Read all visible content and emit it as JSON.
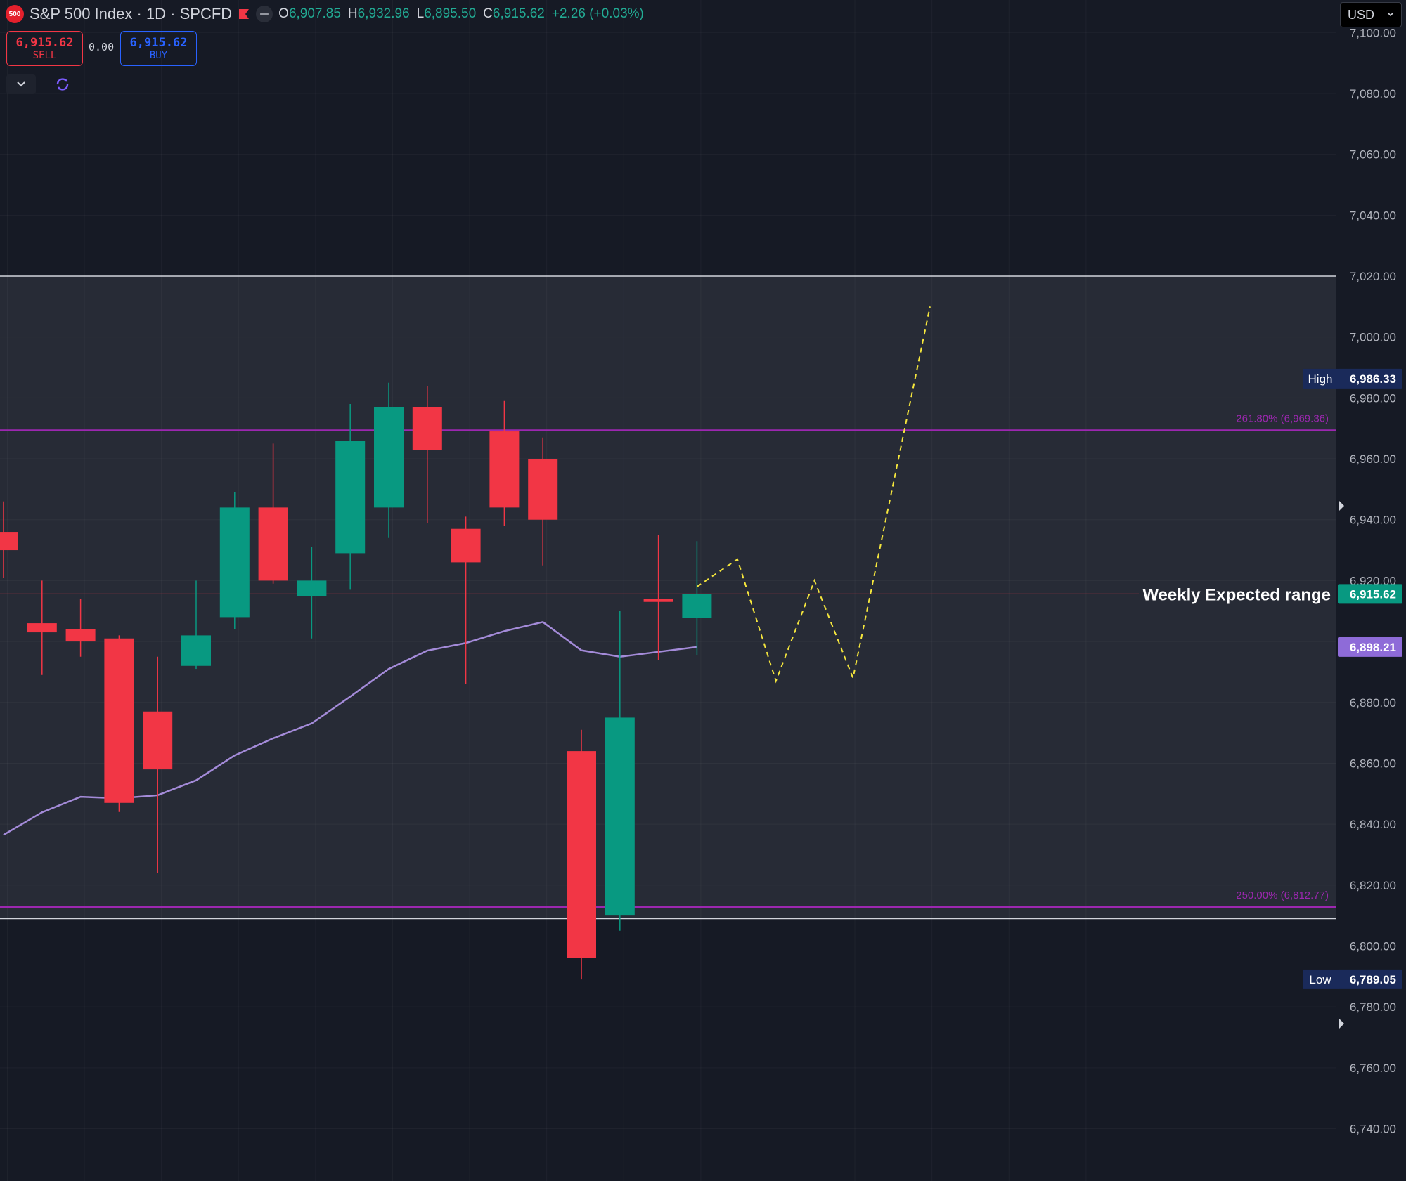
{
  "header": {
    "logo_text": "500",
    "title": "S&P 500 Index · 1D · SPCFD",
    "ohlc": [
      {
        "k": "O",
        "v": "6,907.85"
      },
      {
        "k": "H",
        "v": "6,932.96"
      },
      {
        "k": "L",
        "v": "6,895.50"
      },
      {
        "k": "C",
        "v": "6,915.62"
      }
    ],
    "change": "+2.26 (+0.03%)"
  },
  "trade": {
    "sell_price": "6,915.62",
    "sell_label": "SELL",
    "spread": "0.00",
    "buy_price": "6,915.62",
    "buy_label": "BUY"
  },
  "currency": "USD",
  "chart_data": {
    "type": "candlestick",
    "title": "S&P 500 Index · 1D · SPCFD",
    "ylim": [
      6726,
      7112
    ],
    "yticks": [
      6740,
      6760,
      6780,
      6800,
      6820,
      6840,
      6860,
      6880,
      6900,
      6920,
      6940,
      6960,
      6980,
      7000,
      7020,
      7040,
      7060,
      7080,
      7100
    ],
    "tick_labels": [
      "6,740.00",
      "6,760.00",
      "6,780.00",
      "6,800.00",
      "6,820.00",
      "6,840.00",
      "6,860.00",
      "6,880.00",
      "6,900.00",
      "6,920.00",
      "6,940.00",
      "6,960.00",
      "6,980.00",
      "7,000.00",
      "7,020.00",
      "7,040.00",
      "7,060.00",
      "7,080.00",
      "7,100.00"
    ],
    "colors": {
      "up": "#089981",
      "down": "#f23645",
      "ma": "#a48bd9",
      "fib": "#9c27b0",
      "projection": "#f5e63d",
      "last": "#f23645",
      "background": "#161a25",
      "zone": "#272b36"
    },
    "candles": [
      {
        "i": 0,
        "o": 6936.0,
        "h": 6946.0,
        "l": 6921.0,
        "c": 6930.0
      },
      {
        "i": 1,
        "o": 6906.0,
        "h": 6920.0,
        "l": 6889.0,
        "c": 6903.0
      },
      {
        "i": 2,
        "o": 6904.0,
        "h": 6914.0,
        "l": 6895.0,
        "c": 6900.0
      },
      {
        "i": 3,
        "o": 6901.0,
        "h": 6902.0,
        "l": 6844.0,
        "c": 6847.0
      },
      {
        "i": 4,
        "o": 6877.0,
        "h": 6895.0,
        "l": 6824.0,
        "c": 6858.0
      },
      {
        "i": 5,
        "o": 6892.0,
        "h": 6920.0,
        "l": 6891.0,
        "c": 6902.0
      },
      {
        "i": 6,
        "o": 6908.0,
        "h": 6949.0,
        "l": 6904.0,
        "c": 6944.0
      },
      {
        "i": 7,
        "o": 6944.0,
        "h": 6965.0,
        "l": 6919.0,
        "c": 6920.0
      },
      {
        "i": 8,
        "o": 6915.0,
        "h": 6931.0,
        "l": 6901.0,
        "c": 6920.0
      },
      {
        "i": 9,
        "o": 6929.0,
        "h": 6978.0,
        "l": 6917.0,
        "c": 6966.0
      },
      {
        "i": 10,
        "o": 6944.0,
        "h": 6985.0,
        "l": 6934.0,
        "c": 6977.0
      },
      {
        "i": 11,
        "o": 6977.0,
        "h": 6984.0,
        "l": 6939.0,
        "c": 6963.0
      },
      {
        "i": 12,
        "o": 6937.0,
        "h": 6941.0,
        "l": 6886.0,
        "c": 6926.0
      },
      {
        "i": 13,
        "o": 6969.0,
        "h": 6979.0,
        "l": 6938.0,
        "c": 6944.0
      },
      {
        "i": 14,
        "o": 6960.0,
        "h": 6967.0,
        "l": 6925.0,
        "c": 6940.0
      },
      {
        "i": 15,
        "o": 6864.0,
        "h": 6871.0,
        "l": 6789.0,
        "c": 6796.0
      },
      {
        "i": 16,
        "o": 6810.0,
        "h": 6910.0,
        "l": 6805.0,
        "c": 6875.0
      },
      {
        "i": 17,
        "o": 6914.0,
        "h": 6935.0,
        "l": 6894.0,
        "c": 6913.0
      },
      {
        "i": 18,
        "o": 6907.85,
        "h": 6932.96,
        "l": 6895.5,
        "c": 6915.62
      }
    ],
    "ma": {
      "name": "",
      "values": [
        6836.5,
        6843.9,
        6849.0,
        6848.5,
        6849.5,
        6854.4,
        6862.6,
        6868.2,
        6873.1,
        6881.9,
        6891.0,
        6897.0,
        6899.5,
        6903.4,
        6906.4,
        6897.1,
        6895.0,
        6896.6,
        6898.21
      ]
    },
    "projection_path": [
      [
        18.0,
        6918.0
      ],
      [
        19.05,
        6927.0
      ],
      [
        20.05,
        6887.0
      ],
      [
        21.05,
        6920.0
      ],
      [
        22.05,
        6888.0
      ],
      [
        24.05,
        7010.0
      ]
    ],
    "fib_levels": [
      {
        "value": 6969.36,
        "label": "261.80% (6,969.36)"
      },
      {
        "value": 6812.77,
        "label": "250.00% (6,812.77)"
      }
    ],
    "zone": {
      "top": 7020.0,
      "bottom": 6809.0,
      "label": "Weekly Expected range"
    },
    "last_price": {
      "value": 6915.62,
      "label": "6,915.62"
    },
    "ma_last": {
      "value": 6898.21,
      "label": "6,898.21"
    },
    "high": {
      "value": 6986.33,
      "label": "6,986.33",
      "tag": "High"
    },
    "low": {
      "value": 6789.05,
      "label": "6,789.05",
      "tag": "Low"
    }
  }
}
